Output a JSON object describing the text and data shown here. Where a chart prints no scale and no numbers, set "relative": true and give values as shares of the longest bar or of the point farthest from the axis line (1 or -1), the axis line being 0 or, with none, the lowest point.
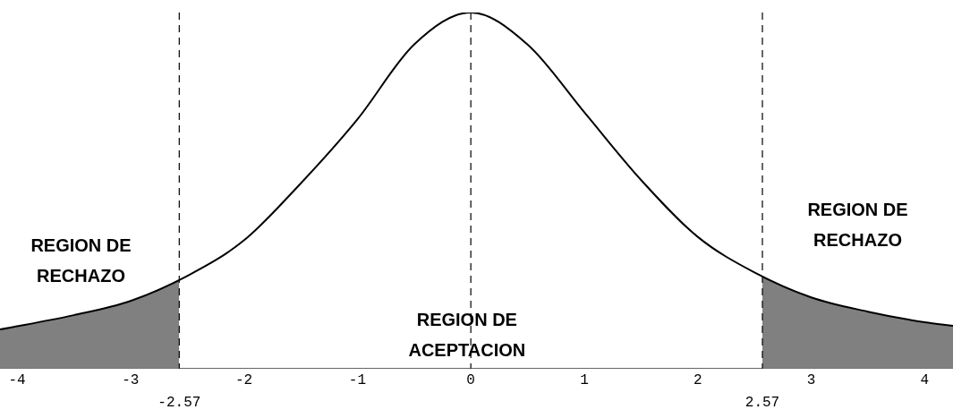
{
  "chart_data": {
    "type": "line",
    "relative": true,
    "x": [
      -4.15,
      -3.5,
      -3,
      -2.5,
      -2,
      -1.5,
      -1,
      -0.5,
      0,
      0.5,
      1,
      1.5,
      2,
      2.5,
      3,
      3.5,
      4,
      4.25
    ],
    "series": [
      {
        "color": "#000000",
        "values": [
          0.11,
          0.15,
          0.19,
          0.26,
          0.36,
          0.52,
          0.7,
          0.91,
          1,
          0.91,
          0.72,
          0.53,
          0.37,
          0.27,
          0.2,
          0.16,
          0.13,
          0.12
        ]
      },
      {
        "type": "area",
        "color": "#808080",
        "x": [
          -4.15,
          -3.5,
          -3,
          -2.57
        ],
        "values": [
          0.11,
          0.15,
          0.19,
          0.25
        ]
      },
      {
        "type": "area",
        "color": "#808080",
        "x": [
          2.57,
          3,
          3.5,
          4,
          4.25
        ],
        "values": [
          0.26,
          0.2,
          0.16,
          0.13,
          0.12
        ]
      }
    ],
    "xlim": [
      -4.15,
      4.25
    ],
    "xticks": [
      -4,
      -3,
      -2,
      -1,
      0,
      1,
      2,
      3,
      4
    ],
    "marker": "none",
    "line_style": "solid",
    "grid": false,
    "legend": false,
    "ref_lines": [
      {
        "axis": "x",
        "value": -2.57,
        "label": "-2.57",
        "line_style": "dashed"
      },
      {
        "axis": "x",
        "value": 0,
        "line_style": "dashed"
      },
      {
        "axis": "x",
        "value": 2.57,
        "label": "2.57",
        "line_style": "dashed"
      }
    ],
    "annotations": [
      "REGION DE RECHAZO",
      "REGION DE RECHAZO",
      "REGION DE ACEPTACION"
    ]
  }
}
